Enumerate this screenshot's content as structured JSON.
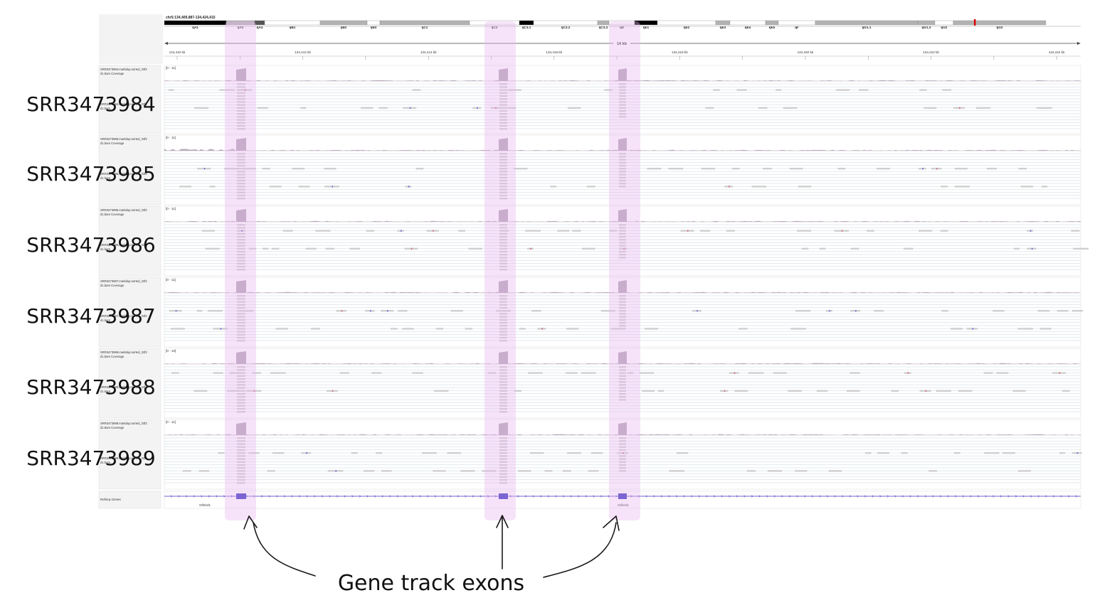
{
  "locus": "chr5:134,409,887-134,424,415",
  "scale_label": "14 kb",
  "colors": {
    "highlight": "#e7b6ee",
    "coverage": "#b7a9b9",
    "read": "#cfcfcf",
    "row_line": "#c9d7df",
    "gene": "#3b33c2",
    "mismatch_red": "#d0687a",
    "mismatch_blue": "#6a6ae0"
  },
  "ideogram": {
    "bands": [
      {
        "label": "qA1",
        "shade": "black"
      },
      {
        "label": "qA2",
        "shade": "gray"
      },
      {
        "label": "qA3",
        "shade": "dark"
      },
      {
        "label": "qB1",
        "shade": "white"
      },
      {
        "label": "qB2",
        "shade": "gray"
      },
      {
        "label": "qB3",
        "shade": "white"
      },
      {
        "label": "qC1",
        "shade": "gray"
      },
      {
        "label": "qC2",
        "shade": "white"
      },
      {
        "label": "qC3.1",
        "shade": "black"
      },
      {
        "label": "qC3.2",
        "shade": "white"
      },
      {
        "label": "qC3.3",
        "shade": "gray"
      },
      {
        "label": "qD",
        "shade": "white"
      },
      {
        "label": "qE1",
        "shade": "black"
      },
      {
        "label": "qE2",
        "shade": "white"
      },
      {
        "label": "qE3",
        "shade": "gray"
      },
      {
        "label": "qE4",
        "shade": "white"
      },
      {
        "label": "qE5",
        "shade": "gray"
      },
      {
        "label": "qF",
        "shade": "white"
      },
      {
        "label": "qG1.1",
        "shade": "gray"
      },
      {
        "label": "qG1.3",
        "shade": "gray"
      },
      {
        "label": "qG2",
        "shade": "white"
      },
      {
        "label": "qG3",
        "shade": "gray"
      }
    ]
  },
  "ruler": {
    "ticks": [
      "134,410 kb",
      "134,412 kb",
      "134,414 kb",
      "134,416 kb",
      "134,418 kb",
      "134,420 kb",
      "134,422 kb",
      "134,424 kb"
    ]
  },
  "tracks": [
    {
      "coverage_name": "SRR3473984.markdup.sorted_Gtf2",
      "coverage_name2": "d1.bam Coverage",
      "range": "[0 - 11]",
      "reads_name": "SRR3473984.markdup.sorted_Gtf2",
      "reads_name2": "d1.bam",
      "sample_label": "SRR3473984"
    },
    {
      "coverage_name": "SRR3473985.markdup.sorted_Gtf2",
      "coverage_name2": "d1.bam Coverage",
      "range": "[0 - 11]",
      "reads_name": "SRR3473985.markdup.sorted_Gtf2",
      "reads_name2": "d1.bam",
      "sample_label": "SRR3473985"
    },
    {
      "coverage_name": "SRR3473986.markdup.sorted_Gtf2",
      "coverage_name2": "d1.bam Coverage",
      "range": "[0 - 11]",
      "reads_name": "SRR3473986.markdup.sorted_Gtf2",
      "reads_name2": "d1.bam",
      "sample_label": "SRR3473986"
    },
    {
      "coverage_name": "SRR3473987.markdup.sorted_Gtf2",
      "coverage_name2": "d1.bam Coverage",
      "range": "[0 - 11]",
      "reads_name": "SRR3473987.markdup.sorted_Gtf2",
      "reads_name2": "d1.bam",
      "sample_label": "SRR3473987"
    },
    {
      "coverage_name": "SRR3473988.markdup.sorted_Gtf2",
      "coverage_name2": "d1.bam Coverage",
      "range": "[0 - 10]",
      "reads_name": "SRR3473988.markdup.sorted_Gtf2",
      "reads_name2": "d1.bam",
      "sample_label": "SRR3473988"
    },
    {
      "coverage_name": "SRR3473989.markdup.sorted_Gtf2",
      "coverage_name2": "d1.bam Coverage",
      "range": "[0 - 11]",
      "reads_name": "SRR3473989.markdup.sorted_Gtf2",
      "reads_name2": "d1.bam",
      "sample_label": "SRR3473989"
    }
  ],
  "refseq": {
    "track_name": "Refseq Genes",
    "gene_label_left": "Gtf2ird1",
    "gene_label_right": "Gtf2ird1"
  },
  "annotation": {
    "text": "Gene track exons"
  }
}
